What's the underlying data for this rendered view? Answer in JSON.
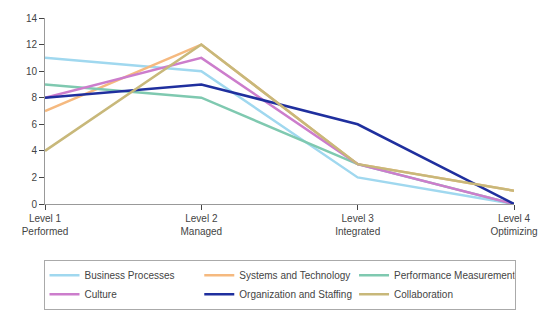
{
  "chart_data": {
    "type": "line",
    "categories": [
      "Level 1\nPerformed",
      "Level 2\nManaged",
      "Level 3\nIntegrated",
      "Level 4\nOptimizing"
    ],
    "series": [
      {
        "name": "Business Processes",
        "color": "#a0d8ef",
        "values": [
          11,
          10,
          2,
          0
        ]
      },
      {
        "name": "Systems and Technology",
        "color": "#f5b97f",
        "values": [
          7,
          12,
          3,
          1
        ]
      },
      {
        "name": "Performance Measurement",
        "color": "#7fc9b0",
        "values": [
          9,
          8,
          3,
          0
        ]
      },
      {
        "name": "Culture",
        "color": "#cc7dcc",
        "values": [
          8,
          11,
          3,
          0
        ]
      },
      {
        "name": "Organization and Staffing",
        "color": "#1f2f9e",
        "values": [
          8,
          9,
          6,
          0
        ]
      },
      {
        "name": "Collaboration",
        "color": "#c8b87a",
        "values": [
          4,
          12,
          3,
          1
        ]
      }
    ],
    "ylim": [
      0,
      14
    ],
    "yticks": [
      0,
      2,
      4,
      6,
      8,
      10,
      12,
      14
    ],
    "grid": false,
    "legend": "bottom"
  }
}
